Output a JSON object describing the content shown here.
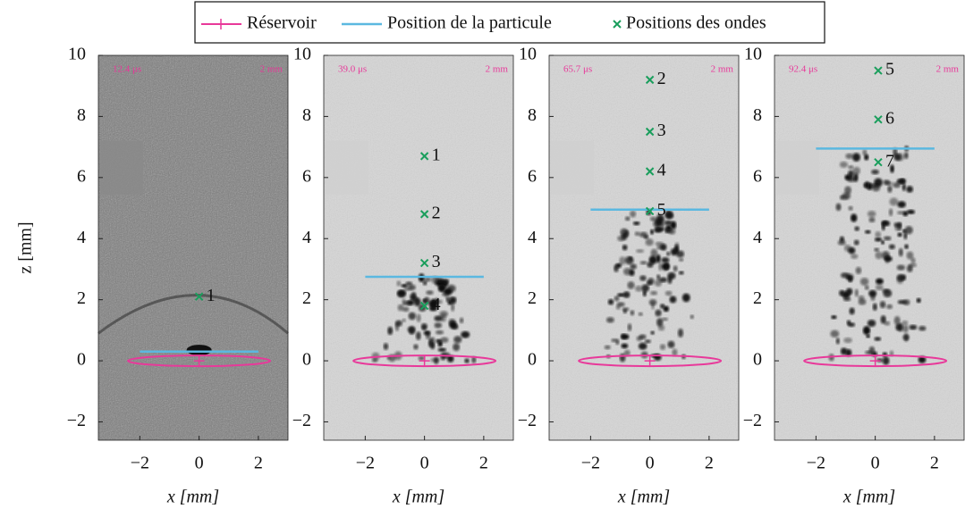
{
  "chart_data": [
    {
      "type": "scatter",
      "annotations": [
        "12.4 μs",
        "2 mm"
      ],
      "xlabel": "x [mm]",
      "ylabel": "z [mm]",
      "dark": true,
      "xlim": [
        -3.4,
        3.0
      ],
      "ylim": [
        -2.6,
        10
      ],
      "xticks": [
        {
          "value": -2,
          "label": "−2"
        },
        0,
        2
      ],
      "yticks": [
        {
          "value": -2,
          "label": "−2"
        },
        0,
        2,
        4,
        6,
        8,
        10
      ],
      "series": [
        {
          "name": "Réservoir",
          "color": "#e8399a",
          "x": [
            0
          ],
          "values": [
            0
          ]
        },
        {
          "name": "Position de la particule",
          "color": "#5bb8e0",
          "x": [
            -2,
            2
          ],
          "values": [
            0.3,
            0.3
          ]
        },
        {
          "name": "Positions des ondes",
          "color": "#1a9e5c",
          "x": [
            0
          ],
          "values": [
            2.1
          ],
          "point_labels": [
            "1"
          ]
        }
      ]
    },
    {
      "type": "scatter",
      "annotations": [
        "39.0 μs",
        "2 mm"
      ],
      "xlabel": "x [mm]",
      "dark": false,
      "xlim": [
        -3.4,
        3.0
      ],
      "ylim": [
        -2.6,
        10
      ],
      "xticks": [
        {
          "value": -2,
          "label": "−2"
        },
        0,
        2
      ],
      "yticks": [
        {
          "value": -2,
          "label": "−2"
        },
        0,
        2,
        4,
        6,
        8,
        10
      ],
      "series": [
        {
          "name": "Réservoir",
          "color": "#e8399a",
          "x": [
            0
          ],
          "values": [
            0
          ]
        },
        {
          "name": "Position de la particule",
          "color": "#5bb8e0",
          "x": [
            -2,
            2
          ],
          "values": [
            2.75,
            2.75
          ]
        },
        {
          "name": "Positions des ondes",
          "color": "#1a9e5c",
          "x": [
            0,
            0,
            0,
            0
          ],
          "values": [
            6.7,
            4.8,
            3.2,
            1.8
          ],
          "point_labels": [
            "1",
            "2",
            "3",
            "4"
          ]
        }
      ]
    },
    {
      "type": "scatter",
      "annotations": [
        "65.7 μs",
        "2 mm"
      ],
      "xlabel": "x [mm]",
      "dark": false,
      "xlim": [
        -3.4,
        3.0
      ],
      "ylim": [
        -2.6,
        10
      ],
      "xticks": [
        {
          "value": -2,
          "label": "−2"
        },
        0,
        2
      ],
      "yticks": [
        {
          "value": -2,
          "label": "−2"
        },
        0,
        2,
        4,
        6,
        8,
        10
      ],
      "series": [
        {
          "name": "Réservoir",
          "color": "#e8399a",
          "x": [
            0
          ],
          "values": [
            0
          ]
        },
        {
          "name": "Position de la particule",
          "color": "#5bb8e0",
          "x": [
            -2,
            2
          ],
          "values": [
            4.95,
            4.95
          ]
        },
        {
          "name": "Positions des ondes",
          "color": "#1a9e5c",
          "x": [
            0,
            0,
            0,
            0
          ],
          "values": [
            9.2,
            7.5,
            6.2,
            4.9
          ],
          "point_labels": [
            "2",
            "3",
            "4",
            "5"
          ]
        }
      ]
    },
    {
      "type": "scatter",
      "annotations": [
        "92.4 μs",
        "2 mm"
      ],
      "xlabel": "x [mm]",
      "dark": false,
      "xlim": [
        -3.4,
        3.0
      ],
      "ylim": [
        -2.6,
        10
      ],
      "xticks": [
        {
          "value": -2,
          "label": "−2"
        },
        0,
        2
      ],
      "yticks": [
        {
          "value": -2,
          "label": "−2"
        },
        0,
        2,
        4,
        6,
        8,
        10
      ],
      "series": [
        {
          "name": "Réservoir",
          "color": "#e8399a",
          "x": [
            0
          ],
          "values": [
            0
          ]
        },
        {
          "name": "Position de la particule",
          "color": "#5bb8e0",
          "x": [
            -2,
            2
          ],
          "values": [
            6.95,
            6.95
          ]
        },
        {
          "name": "Positions des ondes",
          "color": "#1a9e5c",
          "x": [
            0.1,
            0.1,
            0.1
          ],
          "values": [
            9.5,
            7.9,
            6.5
          ],
          "point_labels": [
            "5",
            "6",
            "7"
          ]
        }
      ]
    }
  ]
}
